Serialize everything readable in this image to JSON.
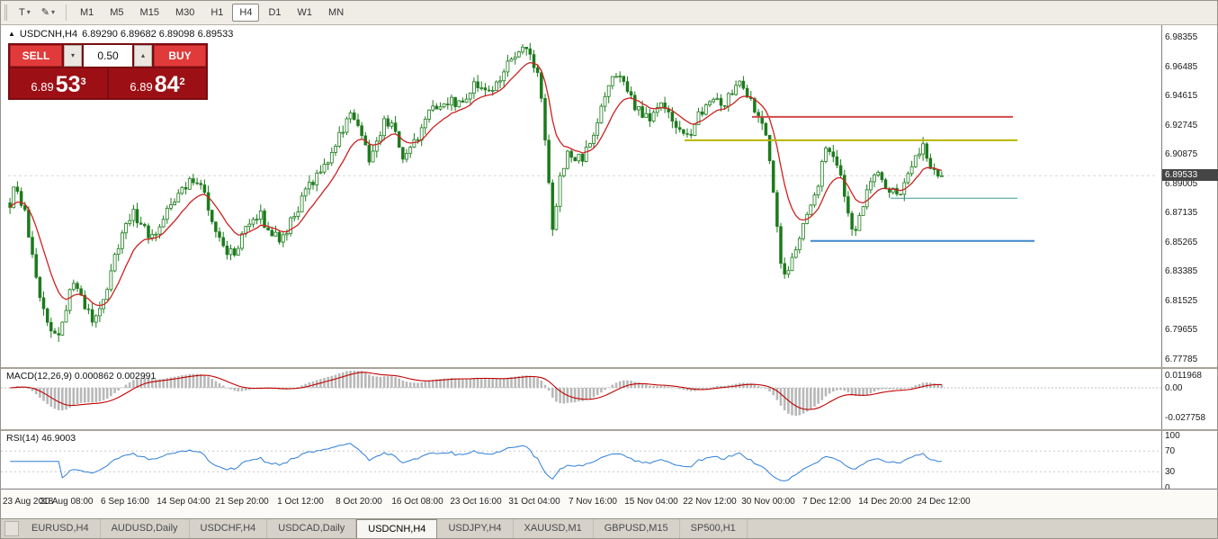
{
  "icons": {
    "cursor_tool": "T",
    "draw_tool": "✎",
    "dropdown": "▾",
    "spinner_up": "▴",
    "spinner_down": "▾",
    "symbol_marker": "▲"
  },
  "toolbar": {
    "timeframes": [
      "M1",
      "M5",
      "M15",
      "M30",
      "H1",
      "H4",
      "D1",
      "W1",
      "MN"
    ],
    "active_timeframe": "H4"
  },
  "chart": {
    "symbol": "USDCNH,H4",
    "ohlc_text": "6.89290 6.89682 6.89098 6.89533"
  },
  "trade_panel": {
    "sell_label": "SELL",
    "buy_label": "BUY",
    "volume": "0.50",
    "sell_price_prefix": "6.89",
    "sell_price_main": "53",
    "sell_price_sup": "3",
    "buy_price_prefix": "6.89",
    "buy_price_main": "84",
    "buy_price_sup": "2"
  },
  "indicators": {
    "macd": {
      "label": "MACD(12,26,9) 0.000862 0.002991",
      "ticks": [
        "0.011968",
        "0.00",
        "-0.027758"
      ]
    },
    "rsi": {
      "label": "RSI(14) 46.9003",
      "ticks": [
        "100",
        "70",
        "30",
        "0"
      ],
      "levels": [
        70,
        30
      ]
    }
  },
  "price_axis": {
    "ticks": [
      "6.98355",
      "6.96485",
      "6.94615",
      "6.92745",
      "6.90875",
      "6.89005",
      "6.87135",
      "6.85265",
      "6.83385",
      "6.81525",
      "6.79655",
      "6.77785"
    ],
    "current": "6.89533"
  },
  "time_axis": {
    "labels": [
      "23 Aug 2018",
      "30 Aug 08:00",
      "6 Sep 16:00",
      "14 Sep 04:00",
      "21 Sep 20:00",
      "1 Oct 12:00",
      "8 Oct 20:00",
      "16 Oct 08:00",
      "23 Oct 16:00",
      "31 Oct 04:00",
      "7 Nov 16:00",
      "15 Nov 04:00",
      "22 Nov 12:00",
      "30 Nov 00:00",
      "7 Dec 12:00",
      "14 Dec 20:00",
      "24 Dec 12:00"
    ]
  },
  "tabs": {
    "items": [
      "EURUSD,H4",
      "AUDUSD,Daily",
      "USDCHF,H4",
      "USDCAD,Daily",
      "USDCNH,H4",
      "USDJPY,H4",
      "XAUUSD,M1",
      "GBPUSD,M15",
      "SP500,H1"
    ],
    "active": "USDCNH,H4"
  },
  "chart_data": {
    "type": "candlestick",
    "title": "USDCNH,H4",
    "symbol": "USDCNH",
    "timeframe": "H4",
    "ohlc": {
      "open": 6.8929,
      "high": 6.89682,
      "low": 6.89098,
      "close": 6.89533
    },
    "y_ticks": [
      6.98355,
      6.96485,
      6.94615,
      6.92745,
      6.90875,
      6.89005,
      6.87135,
      6.85265,
      6.83385,
      6.81525,
      6.79655,
      6.77785
    ],
    "num_candles": 250,
    "price_anchors": [
      [
        0.0,
        6.878
      ],
      [
        0.007,
        6.89
      ],
      [
        0.017,
        6.868
      ],
      [
        0.03,
        6.82
      ],
      [
        0.043,
        6.798
      ],
      [
        0.053,
        6.792
      ],
      [
        0.067,
        6.828
      ],
      [
        0.08,
        6.812
      ],
      [
        0.09,
        6.8
      ],
      [
        0.1,
        6.815
      ],
      [
        0.12,
        6.858
      ],
      [
        0.133,
        6.872
      ],
      [
        0.147,
        6.858
      ],
      [
        0.16,
        6.862
      ],
      [
        0.173,
        6.877
      ],
      [
        0.19,
        6.889
      ],
      [
        0.203,
        6.895
      ],
      [
        0.217,
        6.868
      ],
      [
        0.23,
        6.848
      ],
      [
        0.24,
        6.845
      ],
      [
        0.253,
        6.86
      ],
      [
        0.267,
        6.872
      ],
      [
        0.28,
        6.858
      ],
      [
        0.293,
        6.855
      ],
      [
        0.307,
        6.872
      ],
      [
        0.323,
        6.89
      ],
      [
        0.34,
        6.905
      ],
      [
        0.357,
        6.925
      ],
      [
        0.367,
        6.936
      ],
      [
        0.377,
        6.92
      ],
      [
        0.387,
        6.905
      ],
      [
        0.4,
        6.928
      ],
      [
        0.41,
        6.932
      ],
      [
        0.42,
        6.905
      ],
      [
        0.433,
        6.915
      ],
      [
        0.45,
        6.935
      ],
      [
        0.467,
        6.944
      ],
      [
        0.483,
        6.94
      ],
      [
        0.5,
        6.954
      ],
      [
        0.517,
        6.95
      ],
      [
        0.533,
        6.965
      ],
      [
        0.547,
        6.975
      ],
      [
        0.56,
        6.972
      ],
      [
        0.57,
        6.95
      ],
      [
        0.577,
        6.9
      ],
      [
        0.583,
        6.855
      ],
      [
        0.59,
        6.895
      ],
      [
        0.6,
        6.91
      ],
      [
        0.613,
        6.905
      ],
      [
        0.627,
        6.92
      ],
      [
        0.64,
        6.95
      ],
      [
        0.65,
        6.962
      ],
      [
        0.66,
        6.953
      ],
      [
        0.673,
        6.938
      ],
      [
        0.687,
        6.932
      ],
      [
        0.7,
        6.94
      ],
      [
        0.713,
        6.93
      ],
      [
        0.727,
        6.92
      ],
      [
        0.74,
        6.935
      ],
      [
        0.753,
        6.948
      ],
      [
        0.767,
        6.942
      ],
      [
        0.78,
        6.955
      ],
      [
        0.79,
        6.95
      ],
      [
        0.8,
        6.935
      ],
      [
        0.81,
        6.93
      ],
      [
        0.82,
        6.88
      ],
      [
        0.83,
        6.828
      ],
      [
        0.84,
        6.846
      ],
      [
        0.85,
        6.862
      ],
      [
        0.863,
        6.88
      ],
      [
        0.877,
        6.917
      ],
      [
        0.887,
        6.905
      ],
      [
        0.897,
        6.88
      ],
      [
        0.907,
        6.856
      ],
      [
        0.917,
        6.88
      ],
      [
        0.93,
        6.898
      ],
      [
        0.943,
        6.888
      ],
      [
        0.957,
        6.885
      ],
      [
        0.97,
        6.908
      ],
      [
        0.98,
        6.916
      ],
      [
        0.99,
        6.9
      ],
      [
        1.0,
        6.8953
      ]
    ],
    "levels": [
      {
        "name": "resistance-red",
        "price": 6.933,
        "color": "#cf4a4a",
        "x1": 0.647,
        "x2": 0.872,
        "width": 2
      },
      {
        "name": "resistance-yellow",
        "price": 6.918,
        "color": "#b8b400",
        "x1": 0.589,
        "x2": 0.876,
        "width": 2
      },
      {
        "name": "support-teal",
        "price": 6.881,
        "color": "#3a9b9b",
        "x1": 0.767,
        "x2": 0.876,
        "width": 1
      },
      {
        "name": "support-blue",
        "price": 6.8536,
        "color": "#3e86c8",
        "x1": 0.698,
        "x2": 0.891,
        "width": 2
      }
    ],
    "style": {
      "bull_color": "#1c7a1c",
      "bear_color": "#1c7a1c",
      "ma_color": "#cc2222",
      "macd_hist_color": "#b8b8b8",
      "macd_signal_color": "#c00000",
      "rsi_color": "#2f7ed8"
    },
    "macd_axis": {
      "max": 0.011968,
      "zero": 0.0,
      "min": -0.027758
    },
    "rsi_axis": {
      "max": 100,
      "upper": 70,
      "lower": 30,
      "min": 0
    }
  }
}
